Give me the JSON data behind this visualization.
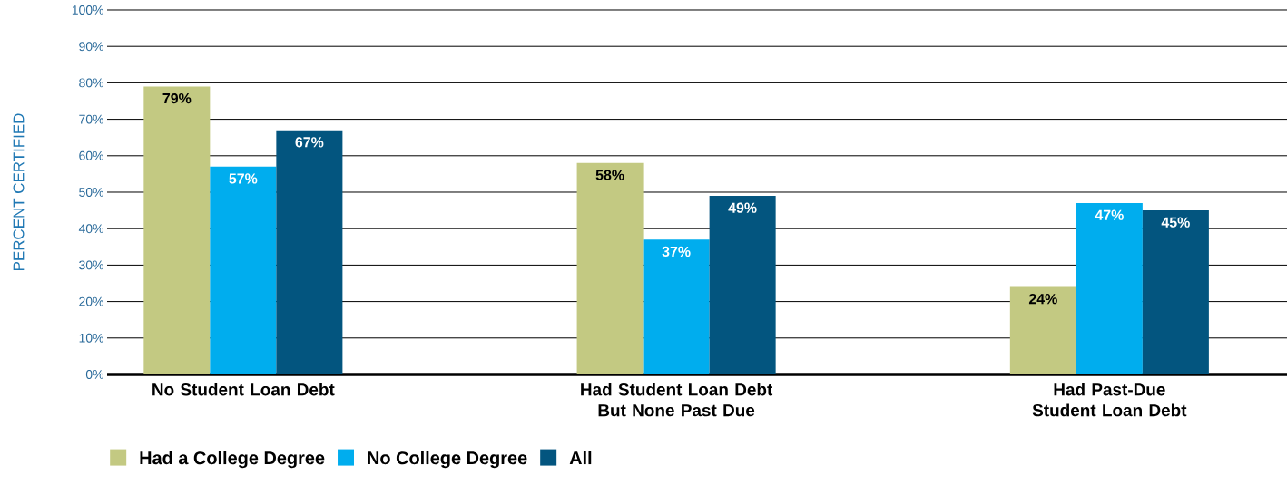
{
  "chart_data": {
    "type": "bar",
    "ylabel": "PERCENT CERTIFIED",
    "categories": [
      "No Student Loan Debt",
      "Had Student Loan Debt But None Past Due",
      "Had Past-Due Student Loan Debt"
    ],
    "series": [
      {
        "name": "Had a College Degree",
        "color": "#c3c982",
        "values": [
          79,
          58,
          24
        ],
        "value_labels": [
          "79%",
          "58%",
          "24%"
        ]
      },
      {
        "name": "No College Degree",
        "color": "#00adee",
        "values": [
          57,
          37,
          47
        ],
        "value_labels": [
          "57%",
          "37%",
          "47%"
        ]
      },
      {
        "name": "All",
        "color": "#03557f",
        "values": [
          67,
          49,
          45
        ],
        "value_labels": [
          "67%",
          "49%",
          "45%"
        ]
      }
    ],
    "ylim": [
      0,
      100
    ],
    "yticks": [
      {
        "value": 0,
        "label": "0%"
      },
      {
        "value": 10,
        "label": "10%"
      },
      {
        "value": 20,
        "label": "20%"
      },
      {
        "value": 30,
        "label": "30%"
      },
      {
        "value": 40,
        "label": "40%"
      },
      {
        "value": 50,
        "label": "50%"
      },
      {
        "value": 60,
        "label": "60%"
      },
      {
        "value": 70,
        "label": "70%"
      },
      {
        "value": 80,
        "label": "80%"
      },
      {
        "value": 90,
        "label": "90%"
      },
      {
        "value": 100,
        "label": "100%"
      }
    ],
    "grid": "y",
    "legend": "bottom"
  }
}
